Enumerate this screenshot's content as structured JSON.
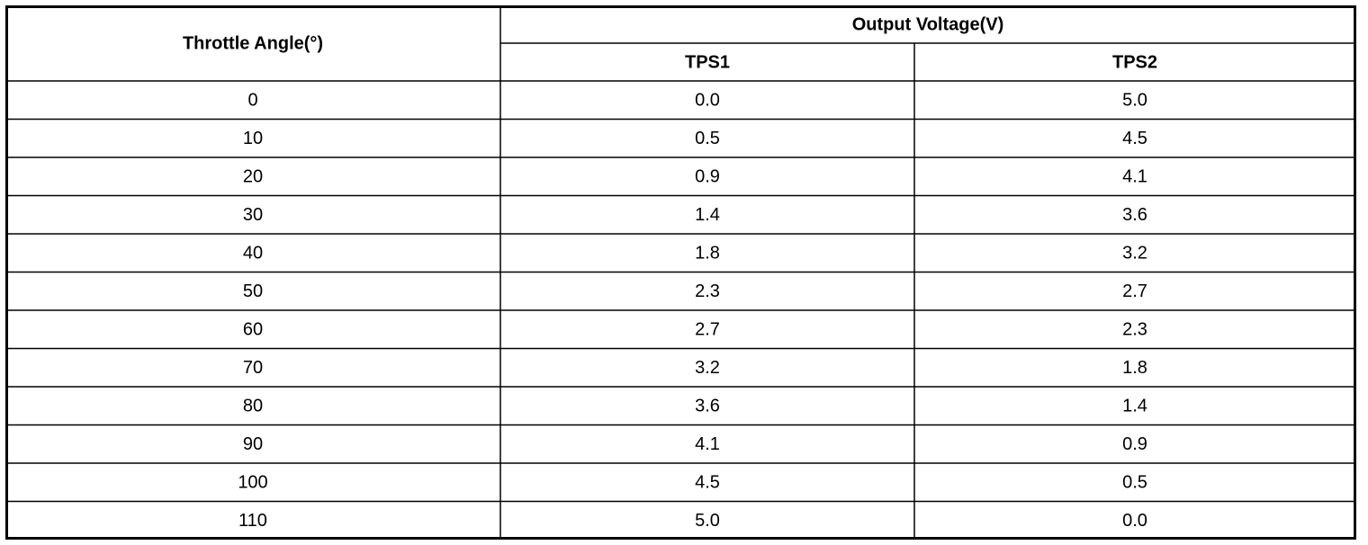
{
  "header": {
    "throttle_angle": "Throttle Angle(°)",
    "output_voltage": "Output Voltage(V)",
    "sub_columns": [
      "TPS1",
      "TPS2"
    ]
  },
  "rows": [
    [
      "0",
      "0.0",
      "5.0"
    ],
    [
      "10",
      "0.5",
      "4.5"
    ],
    [
      "20",
      "0.9",
      "4.1"
    ],
    [
      "30",
      "1.4",
      "3.6"
    ],
    [
      "40",
      "1.8",
      "3.2"
    ],
    [
      "50",
      "2.3",
      "2.7"
    ],
    [
      "60",
      "2.7",
      "2.3"
    ],
    [
      "70",
      "3.2",
      "1.8"
    ],
    [
      "80",
      "3.6",
      "1.4"
    ],
    [
      "90",
      "4.1",
      "0.9"
    ],
    [
      "100",
      "4.5",
      "0.5"
    ],
    [
      "110",
      "5.0",
      "0.0"
    ]
  ]
}
